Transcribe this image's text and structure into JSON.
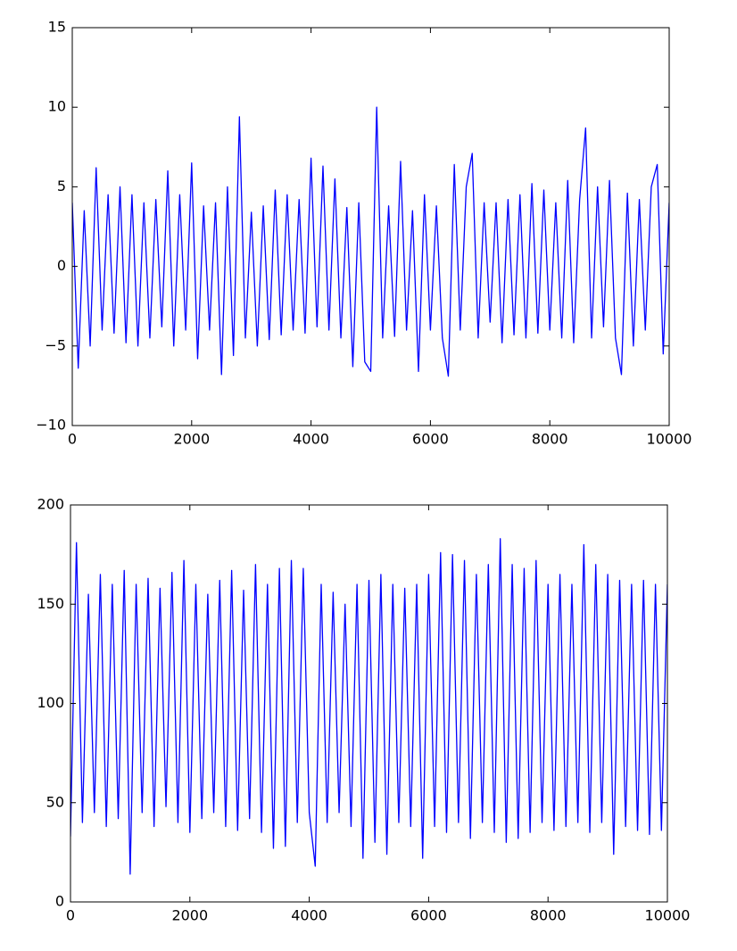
{
  "chart_data": [
    {
      "type": "line",
      "color": "#0000ff",
      "x": [
        0,
        100,
        200,
        300,
        400,
        500,
        600,
        700,
        800,
        900,
        1000,
        1100,
        1200,
        1300,
        1400,
        1500,
        1600,
        1700,
        1800,
        1900,
        2000,
        2100,
        2200,
        2300,
        2400,
        2500,
        2600,
        2700,
        2800,
        2900,
        3000,
        3100,
        3200,
        3300,
        3400,
        3500,
        3600,
        3700,
        3800,
        3900,
        4000,
        4100,
        4200,
        4300,
        4400,
        4500,
        4600,
        4700,
        4800,
        4900,
        5000,
        5100,
        5200,
        5300,
        5400,
        5500,
        5600,
        5700,
        5800,
        5900,
        6000,
        6100,
        6200,
        6300,
        6400,
        6500,
        6600,
        6700,
        6800,
        6900,
        7000,
        7100,
        7200,
        7300,
        7400,
        7500,
        7600,
        7700,
        7800,
        7900,
        8000,
        8100,
        8200,
        8300,
        8400,
        8500,
        8600,
        8700,
        8800,
        8900,
        9000,
        9100,
        9200,
        9300,
        9400,
        9500,
        9600,
        9700,
        9800,
        9900,
        10000
      ],
      "values": [
        4,
        -6.4,
        3.5,
        -5,
        6.2,
        -4,
        4.5,
        -4.2,
        5,
        -4.8,
        4.5,
        -5,
        4,
        -4.5,
        4.2,
        -3.8,
        6,
        -5,
        4.5,
        -4,
        6.5,
        -5.8,
        3.8,
        -4,
        4,
        -6.8,
        5,
        -5.6,
        9.4,
        -4.5,
        3.4,
        -5,
        3.8,
        -4.6,
        4.8,
        -4.3,
        4.5,
        -4,
        4.2,
        -4.2,
        6.8,
        -3.8,
        6.3,
        -4,
        5.5,
        -4.5,
        3.7,
        -6.3,
        4,
        -6,
        -6.6,
        10,
        -4.5,
        3.8,
        -4.4,
        6.6,
        -4,
        3.5,
        -6.6,
        4.5,
        -4,
        3.8,
        -4.5,
        -6.9,
        6.4,
        -4,
        5,
        7.1,
        -4.5,
        4,
        -3.5,
        4,
        -4.8,
        4.2,
        -4.3,
        4.5,
        -4.5,
        5.2,
        -4.2,
        4.8,
        -4,
        4,
        -4.5,
        5.4,
        -4.8,
        4.2,
        8.7,
        -4.5,
        5,
        -3.8,
        5.4,
        -4.5,
        -6.8,
        4.6,
        -5,
        4.2,
        -4,
        5,
        6.4,
        -5.5,
        4
      ],
      "xlim": [
        0,
        10000
      ],
      "xticks": [
        0,
        2000,
        4000,
        6000,
        8000,
        10000
      ],
      "ylim": [
        -10,
        15
      ],
      "yticks": [
        {
          "value": -10,
          "label": "−10"
        },
        {
          "value": -5,
          "label": "−5"
        },
        0,
        5,
        10,
        15
      ]
    },
    {
      "type": "line",
      "color": "#0000ff",
      "x": [
        0,
        100,
        200,
        300,
        400,
        500,
        600,
        700,
        800,
        900,
        1000,
        1100,
        1200,
        1300,
        1400,
        1500,
        1600,
        1700,
        1800,
        1900,
        2000,
        2100,
        2200,
        2300,
        2400,
        2500,
        2600,
        2700,
        2800,
        2900,
        3000,
        3100,
        3200,
        3300,
        3400,
        3500,
        3600,
        3700,
        3800,
        3900,
        4000,
        4100,
        4200,
        4300,
        4400,
        4500,
        4600,
        4700,
        4800,
        4900,
        5000,
        5100,
        5200,
        5300,
        5400,
        5500,
        5600,
        5700,
        5800,
        5900,
        6000,
        6100,
        6200,
        6300,
        6400,
        6500,
        6600,
        6700,
        6800,
        6900,
        7000,
        7100,
        7200,
        7300,
        7400,
        7500,
        7600,
        7700,
        7800,
        7900,
        8000,
        8100,
        8200,
        8300,
        8400,
        8500,
        8600,
        8700,
        8800,
        8900,
        9000,
        9100,
        9200,
        9300,
        9400,
        9500,
        9600,
        9700,
        9800,
        9900,
        10000
      ],
      "values": [
        33,
        181,
        40,
        155,
        45,
        165,
        38,
        160,
        42,
        167,
        14,
        160,
        45,
        163,
        38,
        158,
        48,
        166,
        40,
        172,
        35,
        160,
        42,
        155,
        45,
        162,
        38,
        167,
        36,
        157,
        42,
        170,
        35,
        160,
        27,
        168,
        28,
        172,
        40,
        168,
        45,
        18,
        160,
        40,
        156,
        45,
        150,
        38,
        160,
        22,
        162,
        30,
        165,
        24,
        160,
        40,
        158,
        38,
        160,
        22,
        165,
        38,
        176,
        35,
        175,
        40,
        172,
        32,
        165,
        40,
        170,
        35,
        183,
        30,
        170,
        32,
        168,
        35,
        172,
        40,
        160,
        36,
        165,
        38,
        160,
        40,
        180,
        35,
        170,
        40,
        165,
        24,
        162,
        38,
        160,
        36,
        162,
        34,
        160,
        36,
        160
      ],
      "xlim": [
        0,
        10000
      ],
      "xticks": [
        0,
        2000,
        4000,
        6000,
        8000,
        10000
      ],
      "ylim": [
        0,
        200
      ],
      "yticks": [
        0,
        50,
        100,
        150,
        200
      ]
    }
  ]
}
